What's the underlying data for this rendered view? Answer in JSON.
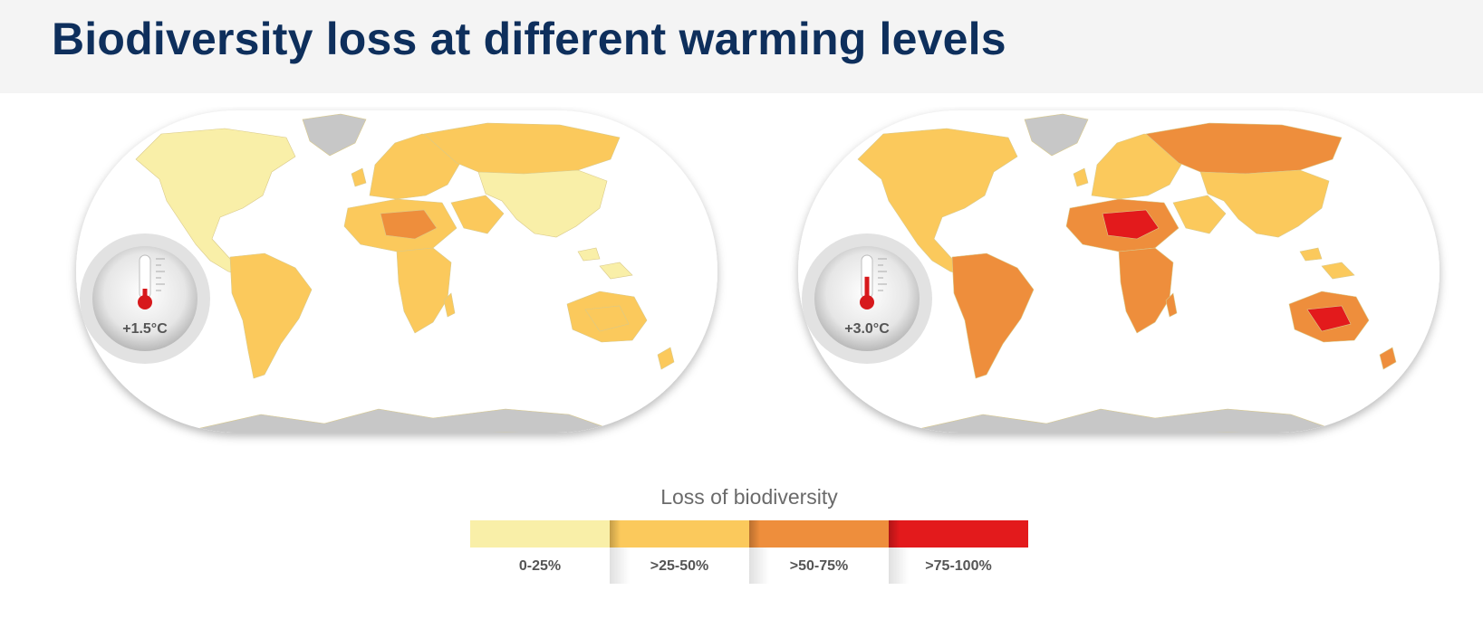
{
  "title": "Biodiversity loss at different warming levels",
  "maps": [
    {
      "warming_label": "+1.5°C",
      "thermometer_level": 0.25,
      "regions": {
        "north_america": 0,
        "greenland": 4,
        "south_america": 1,
        "europe": 1,
        "russia": 1,
        "north_africa": 1,
        "sahara_core": 2,
        "africa_south": 1,
        "middle_east": 1,
        "asia": 0,
        "australia": 1,
        "australia_core": 1,
        "antarctica": 4
      }
    },
    {
      "warming_label": "+3.0°C",
      "thermometer_level": 0.55,
      "regions": {
        "north_america": 1,
        "greenland": 4,
        "south_america": 2,
        "europe": 1,
        "russia": 2,
        "north_africa": 2,
        "sahara_core": 3,
        "africa_south": 2,
        "middle_east": 1,
        "asia": 1,
        "australia": 2,
        "australia_core": 3,
        "antarctica": 4
      }
    }
  ],
  "legend": {
    "title": "Loss of biodiversity",
    "classes": [
      {
        "label": "0-25%",
        "color": "#f9efa8"
      },
      {
        "label": ">25-50%",
        "color": "#fbc95c"
      },
      {
        "label": ">50-75%",
        "color": "#ee8e3c"
      },
      {
        "label": ">75-100%",
        "color": "#e31a1c"
      }
    ],
    "ice_color": "#c7c7c7"
  }
}
